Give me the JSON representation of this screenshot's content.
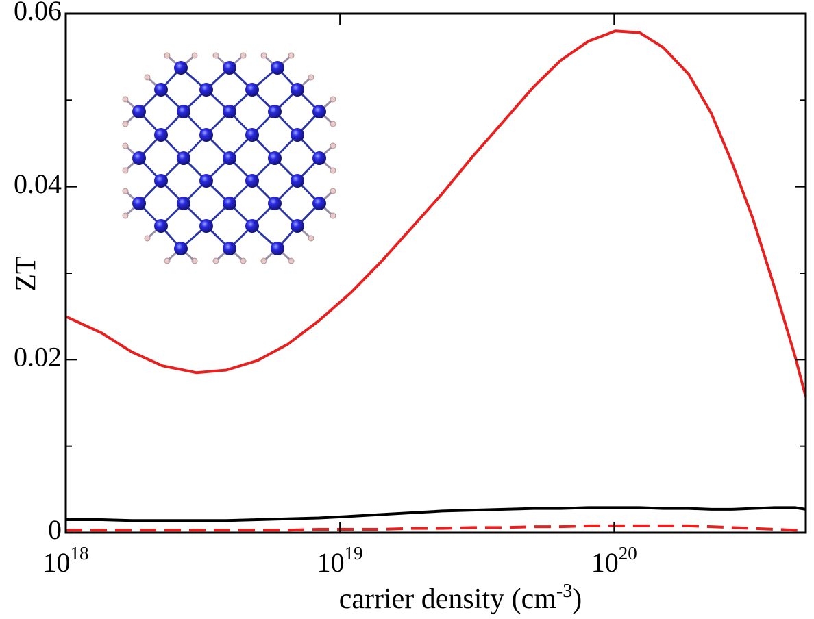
{
  "chart_data": {
    "type": "line",
    "xlabel_parts": [
      "carrier density (cm",
      "-3",
      ")"
    ],
    "ylabel": "ZT",
    "xscale": "log",
    "x": [
      1e+18,
      1.35e+18,
      1.74e+18,
      2.25e+18,
      3e+18,
      3.85e+18,
      5e+18,
      6.46e+18,
      8.37e+18,
      1.1e+19,
      1.41e+19,
      1.82e+19,
      2.36e+19,
      3.05e+19,
      3.96e+19,
      5.07e+19,
      6.38e+19,
      8.04e+19,
      1.01e+20,
      1.24e+20,
      1.51e+20,
      1.87e+20,
      2.26e+20,
      2.69e+20,
      3.2e+20,
      3.85e+20,
      4.57e+20,
      5e+20
    ],
    "series": [
      {
        "color": "#e8201f",
        "dash": false,
        "values": [
          0.025,
          0.0231,
          0.0209,
          0.0193,
          0.0185,
          0.0188,
          0.0199,
          0.0218,
          0.0245,
          0.0278,
          0.0313,
          0.0352,
          0.0392,
          0.0435,
          0.0476,
          0.0515,
          0.0546,
          0.0568,
          0.058,
          0.0578,
          0.0561,
          0.053,
          0.0485,
          0.0428,
          0.0364,
          0.0283,
          0.0204,
          0.0157
        ]
      },
      {
        "color": "#000000",
        "dash": false,
        "values": [
          0.0015,
          0.0015,
          0.0014,
          0.0014,
          0.0014,
          0.0014,
          0.0015,
          0.0016,
          0.0017,
          0.0019,
          0.0021,
          0.0023,
          0.0025,
          0.0026,
          0.0027,
          0.0028,
          0.0028,
          0.0029,
          0.0029,
          0.0029,
          0.0028,
          0.0028,
          0.0027,
          0.0027,
          0.0028,
          0.0029,
          0.0029,
          0.0027
        ]
      },
      {
        "color": "#e8201f",
        "dash": true,
        "values": [
          0.0003,
          0.0003,
          0.0003,
          0.0003,
          0.0003,
          0.0003,
          0.0003,
          0.0003,
          0.0004,
          0.0004,
          0.0004,
          0.0005,
          0.0005,
          0.0006,
          0.0006,
          0.0007,
          0.0007,
          0.0008,
          0.0008,
          0.0008,
          0.0008,
          0.0008,
          0.0007,
          0.0006,
          0.0005,
          0.0004,
          0.0003,
          0.0003
        ]
      }
    ],
    "xlim": [
      1e+18,
      5e+20
    ],
    "xticks": [
      {
        "value": 1e+18,
        "label": "10",
        "sup": "18"
      },
      {
        "value": 1e+19,
        "label": "10",
        "sup": "19"
      },
      {
        "value": 1e+20,
        "label": "10",
        "sup": "20"
      }
    ],
    "ylim": [
      0,
      0.06
    ],
    "yticks": [
      0,
      0.02,
      0.04,
      0.06
    ],
    "yminor": [
      0.01,
      0.03,
      0.05
    ],
    "grid": false
  }
}
